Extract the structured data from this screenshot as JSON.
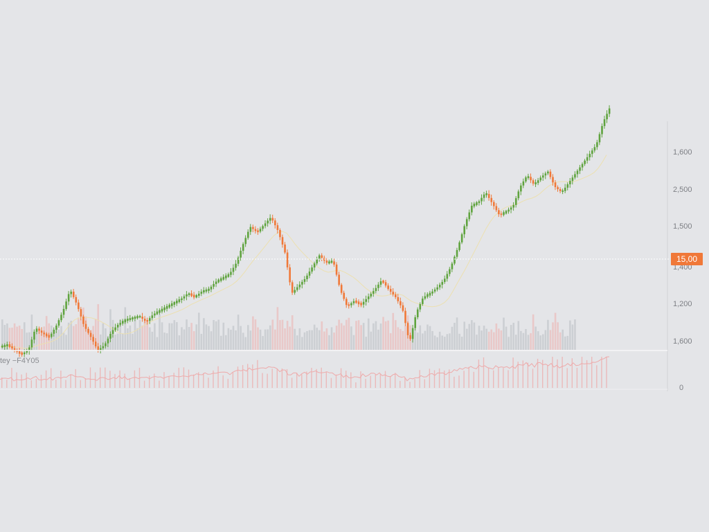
{
  "colors": {
    "background": "#e4e5e8",
    "up": "#5fa33e",
    "down": "#f07838",
    "volume_up": "#c9ccd0",
    "volume_down": "#e9c4c4",
    "ma_line": "#ece0b0",
    "oscillator": "#eeaaaa",
    "price_tag": "#f07838",
    "crosshair": "#ffffff"
  },
  "price_tag_label": "15,00",
  "oscillator_label": "tey −F4Y05",
  "chart_data": {
    "type": "candlestick",
    "y_axis_labels": [
      "1,600",
      "2,500",
      "1,500",
      "1,400",
      "1,200",
      "1,600",
      "0"
    ],
    "close_path": [
      [
        0,
        1170
      ],
      [
        10,
        1175
      ],
      [
        20,
        1160
      ],
      [
        30,
        1150
      ],
      [
        40,
        1162
      ],
      [
        50,
        1220
      ],
      [
        60,
        1205
      ],
      [
        70,
        1195
      ],
      [
        80,
        1225
      ],
      [
        90,
        1265
      ],
      [
        100,
        1320
      ],
      [
        110,
        1280
      ],
      [
        120,
        1225
      ],
      [
        130,
        1195
      ],
      [
        140,
        1160
      ],
      [
        150,
        1175
      ],
      [
        160,
        1210
      ],
      [
        170,
        1230
      ],
      [
        180,
        1240
      ],
      [
        190,
        1245
      ],
      [
        200,
        1250
      ],
      [
        210,
        1235
      ],
      [
        220,
        1255
      ],
      [
        230,
        1265
      ],
      [
        240,
        1275
      ],
      [
        250,
        1285
      ],
      [
        260,
        1295
      ],
      [
        270,
        1310
      ],
      [
        280,
        1300
      ],
      [
        290,
        1315
      ],
      [
        300,
        1320
      ],
      [
        310,
        1340
      ],
      [
        320,
        1350
      ],
      [
        330,
        1360
      ],
      [
        340,
        1390
      ],
      [
        350,
        1440
      ],
      [
        360,
        1485
      ],
      [
        370,
        1470
      ],
      [
        380,
        1490
      ],
      [
        390,
        1510
      ],
      [
        400,
        1475
      ],
      [
        410,
        1420
      ],
      [
        420,
        1310
      ],
      [
        430,
        1330
      ],
      [
        440,
        1350
      ],
      [
        450,
        1380
      ],
      [
        460,
        1410
      ],
      [
        470,
        1390
      ],
      [
        480,
        1395
      ],
      [
        490,
        1320
      ],
      [
        500,
        1275
      ],
      [
        510,
        1290
      ],
      [
        520,
        1280
      ],
      [
        530,
        1300
      ],
      [
        540,
        1320
      ],
      [
        550,
        1345
      ],
      [
        560,
        1320
      ],
      [
        570,
        1300
      ],
      [
        580,
        1270
      ],
      [
        590,
        1180
      ],
      [
        600,
        1260
      ],
      [
        610,
        1300
      ],
      [
        620,
        1310
      ],
      [
        630,
        1325
      ],
      [
        640,
        1345
      ],
      [
        650,
        1380
      ],
      [
        660,
        1430
      ],
      [
        670,
        1490
      ],
      [
        680,
        1540
      ],
      [
        690,
        1550
      ],
      [
        700,
        1575
      ],
      [
        710,
        1545
      ],
      [
        720,
        1515
      ],
      [
        730,
        1525
      ],
      [
        740,
        1540
      ],
      [
        750,
        1590
      ],
      [
        760,
        1620
      ],
      [
        770,
        1595
      ],
      [
        780,
        1615
      ],
      [
        790,
        1630
      ],
      [
        800,
        1590
      ],
      [
        810,
        1575
      ],
      [
        820,
        1600
      ],
      [
        830,
        1625
      ],
      [
        840,
        1650
      ],
      [
        850,
        1675
      ],
      [
        860,
        1700
      ],
      [
        870,
        1760
      ],
      [
        880,
        1800
      ]
    ]
  }
}
